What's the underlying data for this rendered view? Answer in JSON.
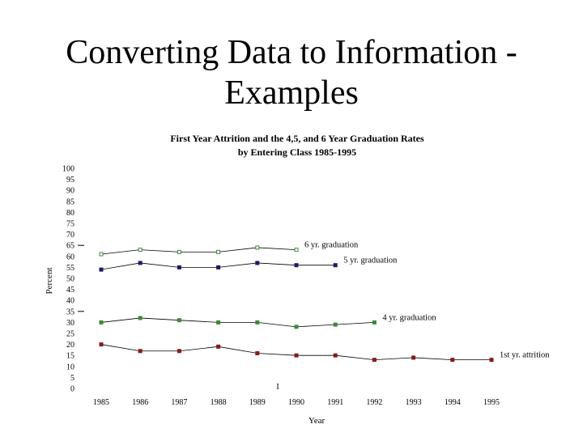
{
  "slide": {
    "title_line1": "Converting Data to Information -",
    "title_line2": "Examples"
  },
  "chart_data": {
    "type": "line",
    "title": "First Year Attrition and the 4,5, and 6 Year Graduation Rates",
    "subtitle": "by Entering Class 1985-1995",
    "xlabel": "Year",
    "ylabel": "Percent",
    "ylim": [
      0,
      100
    ],
    "yticks": [
      "0",
      "5",
      "10",
      "15",
      "20",
      "25",
      "30",
      "35",
      "40",
      "45",
      "50",
      "55",
      "60",
      "65",
      "70",
      "75",
      "80",
      "85",
      "90",
      "95",
      "100"
    ],
    "categories": [
      "1985",
      "1986",
      "1987",
      "1988",
      "1989",
      "1990",
      "1991",
      "1992",
      "1993",
      "1994",
      "1995"
    ],
    "stray_mark": "I",
    "series": [
      {
        "name": "6 yr. graduation",
        "marker_color": "#3a8a3a",
        "marker": "hollow",
        "values": [
          61,
          63,
          62,
          62,
          64,
          63,
          null,
          null,
          null,
          null,
          null
        ]
      },
      {
        "name": "5 yr. graduation",
        "marker_color": "#1a1a6e",
        "marker": "filled",
        "values": [
          54,
          57,
          55,
          55,
          57,
          56,
          56,
          null,
          null,
          null,
          null
        ]
      },
      {
        "name": "4 yr. graduation",
        "marker_color": "#3a8a3a",
        "marker": "filled",
        "values": [
          30,
          32,
          31,
          30,
          30,
          28,
          29,
          30,
          null,
          null,
          null
        ]
      },
      {
        "name": "1st yr. attrition",
        "marker_color": "#8a1a1a",
        "marker": "filled",
        "values": [
          20,
          17,
          17,
          19,
          16,
          15,
          15,
          13,
          14,
          13,
          13
        ]
      }
    ]
  }
}
